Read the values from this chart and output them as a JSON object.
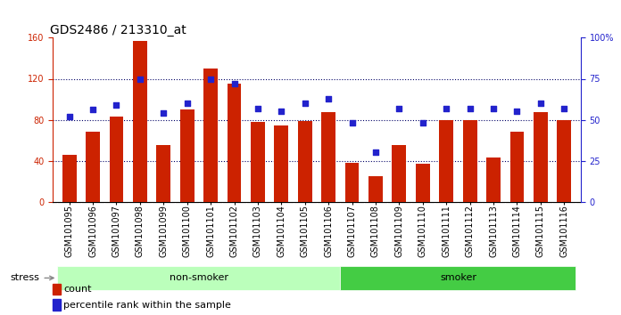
{
  "title": "GDS2486 / 213310_at",
  "samples": [
    "GSM101095",
    "GSM101096",
    "GSM101097",
    "GSM101098",
    "GSM101099",
    "GSM101100",
    "GSM101101",
    "GSM101102",
    "GSM101103",
    "GSM101104",
    "GSM101105",
    "GSM101106",
    "GSM101107",
    "GSM101108",
    "GSM101109",
    "GSM101110",
    "GSM101111",
    "GSM101112",
    "GSM101113",
    "GSM101114",
    "GSM101115",
    "GSM101116"
  ],
  "counts": [
    46,
    68,
    83,
    157,
    55,
    90,
    130,
    115,
    78,
    74,
    79,
    87,
    38,
    25,
    55,
    37,
    80,
    80,
    43,
    68,
    87,
    80
  ],
  "percentile_ranks": [
    52,
    56,
    59,
    75,
    54,
    60,
    75,
    72,
    57,
    55,
    60,
    63,
    48,
    30,
    57,
    48,
    57,
    57,
    57,
    55,
    60,
    57
  ],
  "bar_color": "#cc2200",
  "dot_color": "#2222cc",
  "non_smoker_count": 12,
  "smoker_count": 10,
  "non_smoker_label": "non-smoker",
  "smoker_label": "smoker",
  "group_label": "stress",
  "non_smoker_bg": "#bbffbb",
  "smoker_bg": "#44cc44",
  "tick_bg": "#cccccc",
  "ylim_left": [
    0,
    160
  ],
  "ylim_right": [
    0,
    100
  ],
  "yticks_left": [
    0,
    40,
    80,
    120,
    160
  ],
  "yticks_right": [
    0,
    25,
    50,
    75,
    100
  ],
  "ytick_labels_right": [
    "0",
    "25",
    "50",
    "75",
    "100%"
  ],
  "grid_color": "#000066",
  "title_fontsize": 10,
  "tick_fontsize": 7,
  "label_fontsize": 8
}
